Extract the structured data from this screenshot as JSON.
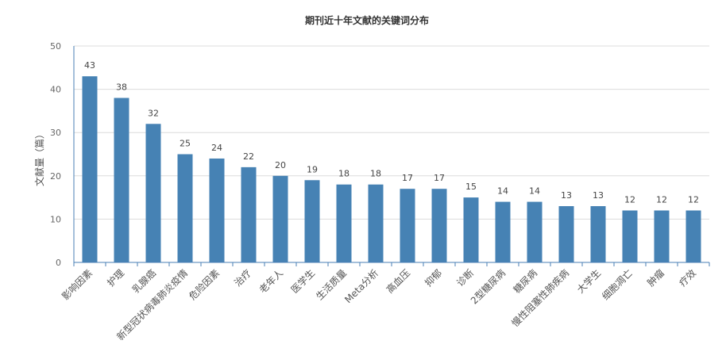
{
  "chart_data": {
    "type": "bar",
    "title": "期刊近十年文献的关键词分布",
    "xlabel": "",
    "ylabel": "文献量（篇）",
    "ylim": [
      0,
      50
    ],
    "yticks": [
      0,
      10,
      20,
      30,
      40,
      50
    ],
    "grid": true,
    "legend": "none",
    "bar_color": "#4682B4",
    "categories": [
      "影响因素",
      "护理",
      "乳腺癌",
      "新型冠状病毒肺炎疫情",
      "危险因素",
      "治疗",
      "老年人",
      "医学生",
      "生活质量",
      "Meta分析",
      "高血压",
      "抑郁",
      "诊断",
      "2型糖尿病",
      "糖尿病",
      "慢性阻塞性肺疾病",
      "大学生",
      "细胞凋亡",
      "肿瘤",
      "疗效"
    ],
    "values": [
      43,
      38,
      32,
      25,
      24,
      22,
      20,
      19,
      18,
      18,
      17,
      17,
      15,
      14,
      14,
      13,
      13,
      12,
      12,
      12
    ]
  }
}
